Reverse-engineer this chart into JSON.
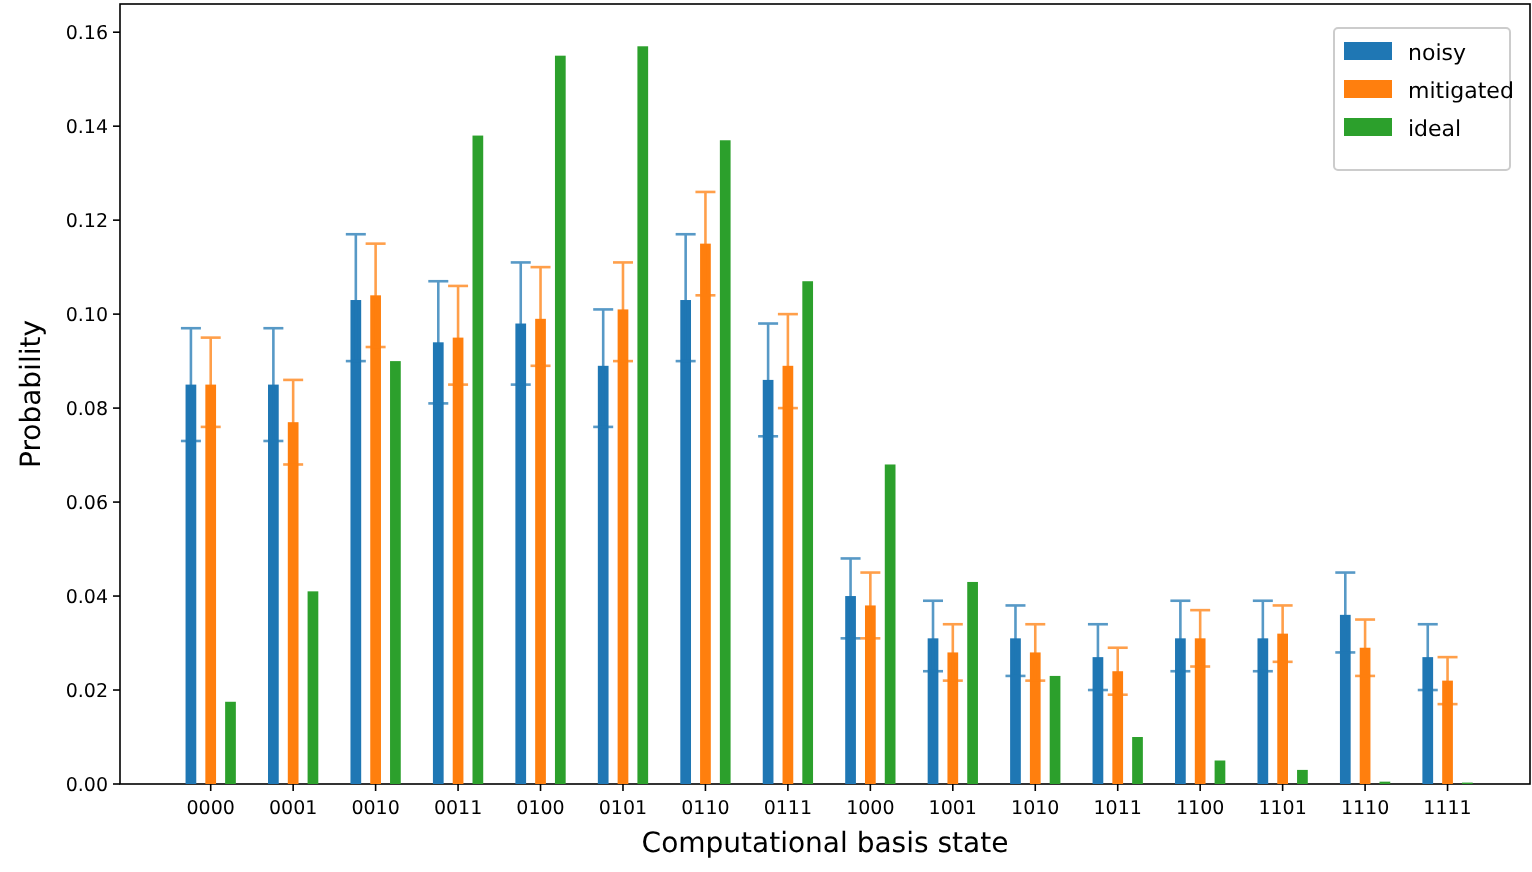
{
  "chart_data": {
    "type": "bar",
    "xlabel": "Computational basis state",
    "ylabel": "Probability",
    "categories": [
      "0000",
      "0001",
      "0010",
      "0011",
      "0100",
      "0101",
      "0110",
      "0111",
      "1000",
      "1001",
      "1010",
      "1011",
      "1100",
      "1101",
      "1110",
      "1111"
    ],
    "series": [
      {
        "name": "noisy",
        "color": "#1f77b4",
        "values": [
          0.085,
          0.085,
          0.103,
          0.094,
          0.098,
          0.089,
          0.103,
          0.086,
          0.04,
          0.031,
          0.031,
          0.027,
          0.031,
          0.031,
          0.036,
          0.027
        ],
        "errors": [
          [
            0.073,
            0.097
          ],
          [
            0.073,
            0.097
          ],
          [
            0.09,
            0.117
          ],
          [
            0.081,
            0.107
          ],
          [
            0.085,
            0.111
          ],
          [
            0.076,
            0.101
          ],
          [
            0.09,
            0.117
          ],
          [
            0.074,
            0.098
          ],
          [
            0.031,
            0.048
          ],
          [
            0.024,
            0.039
          ],
          [
            0.023,
            0.038
          ],
          [
            0.02,
            0.034
          ],
          [
            0.024,
            0.039
          ],
          [
            0.024,
            0.039
          ],
          [
            0.028,
            0.045
          ],
          [
            0.02,
            0.034
          ]
        ]
      },
      {
        "name": "mitigated",
        "color": "#ff7f0e",
        "values": [
          0.085,
          0.077,
          0.104,
          0.095,
          0.099,
          0.101,
          0.115,
          0.089,
          0.038,
          0.028,
          0.028,
          0.024,
          0.031,
          0.032,
          0.029,
          0.022
        ],
        "errors": [
          [
            0.076,
            0.095
          ],
          [
            0.068,
            0.086
          ],
          [
            0.093,
            0.115
          ],
          [
            0.085,
            0.106
          ],
          [
            0.089,
            0.11
          ],
          [
            0.09,
            0.111
          ],
          [
            0.104,
            0.126
          ],
          [
            0.08,
            0.1
          ],
          [
            0.031,
            0.045
          ],
          [
            0.022,
            0.034
          ],
          [
            0.022,
            0.034
          ],
          [
            0.019,
            0.029
          ],
          [
            0.025,
            0.037
          ],
          [
            0.026,
            0.038
          ],
          [
            0.023,
            0.035
          ],
          [
            0.017,
            0.027
          ]
        ]
      },
      {
        "name": "ideal",
        "color": "#2ca02c",
        "values": [
          0.0175,
          0.041,
          0.09,
          0.138,
          0.155,
          0.157,
          0.137,
          0.107,
          0.068,
          0.043,
          0.023,
          0.01,
          0.005,
          0.003,
          0.0005,
          0.0003
        ]
      }
    ],
    "ylim": [
      0,
      0.166
    ],
    "yticks": [
      {
        "value": 0,
        "label": "0.00"
      },
      {
        "value": 0.02,
        "label": "0.02"
      },
      {
        "value": 0.04,
        "label": "0.04"
      },
      {
        "value": 0.06,
        "label": "0.06"
      },
      {
        "value": 0.08,
        "label": "0.08"
      },
      {
        "value": 0.1,
        "label": "0.10"
      },
      {
        "value": 0.12,
        "label": "0.12"
      },
      {
        "value": 0.14,
        "label": "0.14"
      },
      {
        "value": 0.16,
        "label": "0.16"
      }
    ],
    "grid": false,
    "legend": "top right"
  }
}
